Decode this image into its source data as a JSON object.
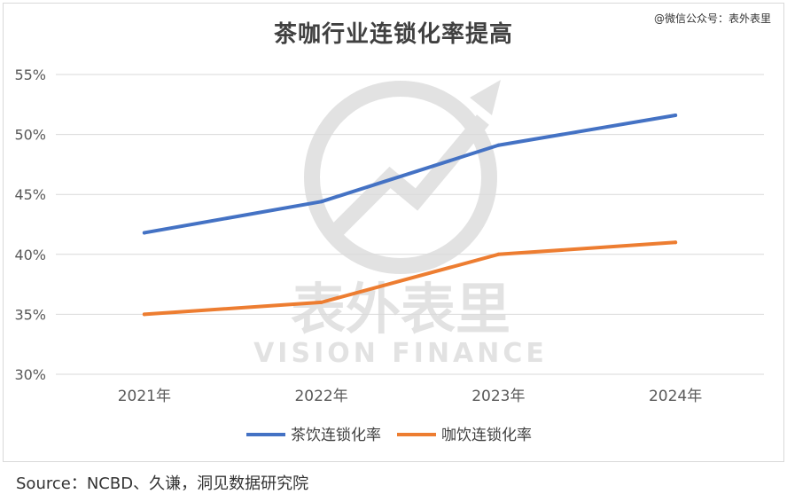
{
  "watermark": {
    "text_cn": "表外表里",
    "text_en": "VISION FINANCE"
  },
  "wechat_label": "@微信公众号：表外表里",
  "source_label": "Source：NCBD、久谦，洞见数据研究院",
  "colors": {
    "series_tea": "#4472C4",
    "series_coffee": "#ED7D31",
    "grid": "#d9d9d9",
    "axis_text": "#595959"
  },
  "chart_data": {
    "type": "line",
    "title": "茶咖行业连锁化率提高",
    "categories": [
      "2021年",
      "2022年",
      "2023年",
      "2024年"
    ],
    "series": [
      {
        "name": "茶饮连锁化率",
        "values": [
          41.8,
          44.4,
          49.1,
          51.6
        ]
      },
      {
        "name": "咖饮连锁化率",
        "values": [
          35.0,
          36.0,
          40.0,
          41.0
        ]
      }
    ],
    "ylim": [
      30,
      55
    ],
    "yticks": [
      "30%",
      "35%",
      "40%",
      "45%",
      "50%",
      "55%"
    ],
    "xlabel": "",
    "ylabel": "",
    "grid": true,
    "legend": "bottom"
  }
}
